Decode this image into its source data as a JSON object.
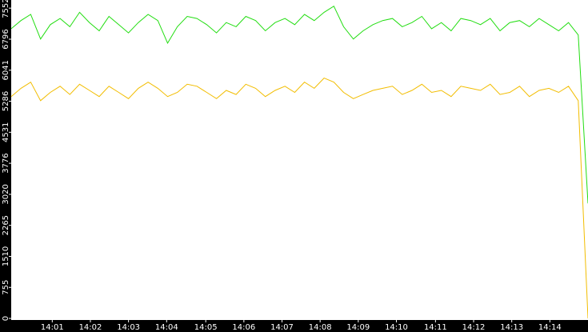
{
  "chart_data": {
    "type": "line",
    "series": [
      {
        "color": "#22dd11",
        "values": [
          7050,
          7250,
          7400,
          6800,
          7150,
          7300,
          7100,
          7450,
          7200,
          7000,
          7350,
          7150,
          6950,
          7200,
          7400,
          7250,
          6700,
          7100,
          7350,
          7300,
          7150,
          6950,
          7200,
          7100,
          7350,
          7250,
          7000,
          7200,
          7300,
          7150,
          7400,
          7250,
          7450,
          7600,
          7100,
          6800,
          7000,
          7150,
          7250,
          7300,
          7100,
          7200,
          7350,
          7050,
          7200,
          7000,
          7300,
          7250,
          7150,
          7300,
          7000,
          7200,
          7250,
          7100,
          7300,
          7150,
          7000,
          7200,
          6900,
          2800
        ]
      },
      {
        "color": "#f2bd00",
        "values": [
          5400,
          5600,
          5750,
          5300,
          5500,
          5650,
          5450,
          5700,
          5550,
          5400,
          5650,
          5500,
          5350,
          5600,
          5750,
          5600,
          5400,
          5500,
          5700,
          5650,
          5500,
          5350,
          5550,
          5450,
          5700,
          5600,
          5400,
          5550,
          5650,
          5500,
          5750,
          5600,
          5850,
          5750,
          5500,
          5350,
          5450,
          5550,
          5600,
          5650,
          5450,
          5550,
          5700,
          5500,
          5550,
          5400,
          5650,
          5600,
          5550,
          5700,
          5450,
          5500,
          5650,
          5400,
          5550,
          5600,
          5500,
          5650,
          5300,
          0
        ]
      }
    ],
    "xlim": [
      0,
      59
    ],
    "xticks": [
      {
        "value": 4.2,
        "label": "14:01"
      },
      {
        "value": 8.1,
        "label": "14:02"
      },
      {
        "value": 12.0,
        "label": "14:03"
      },
      {
        "value": 15.9,
        "label": "14:04"
      },
      {
        "value": 19.9,
        "label": "14:05"
      },
      {
        "value": 23.8,
        "label": "14:06"
      },
      {
        "value": 27.7,
        "label": "14:07"
      },
      {
        "value": 31.6,
        "label": "14:08"
      },
      {
        "value": 35.5,
        "label": "14:09"
      },
      {
        "value": 39.4,
        "label": "14:10"
      },
      {
        "value": 43.4,
        "label": "14:11"
      },
      {
        "value": 47.3,
        "label": "14:12"
      },
      {
        "value": 51.2,
        "label": "14:13"
      },
      {
        "value": 55.1,
        "label": "14:14"
      }
    ],
    "ylim": [
      0,
      7750
    ],
    "yticks": [
      0,
      755,
      1510,
      2265,
      3020,
      3776,
      4531,
      5286,
      6041,
      6796,
      7552
    ]
  }
}
